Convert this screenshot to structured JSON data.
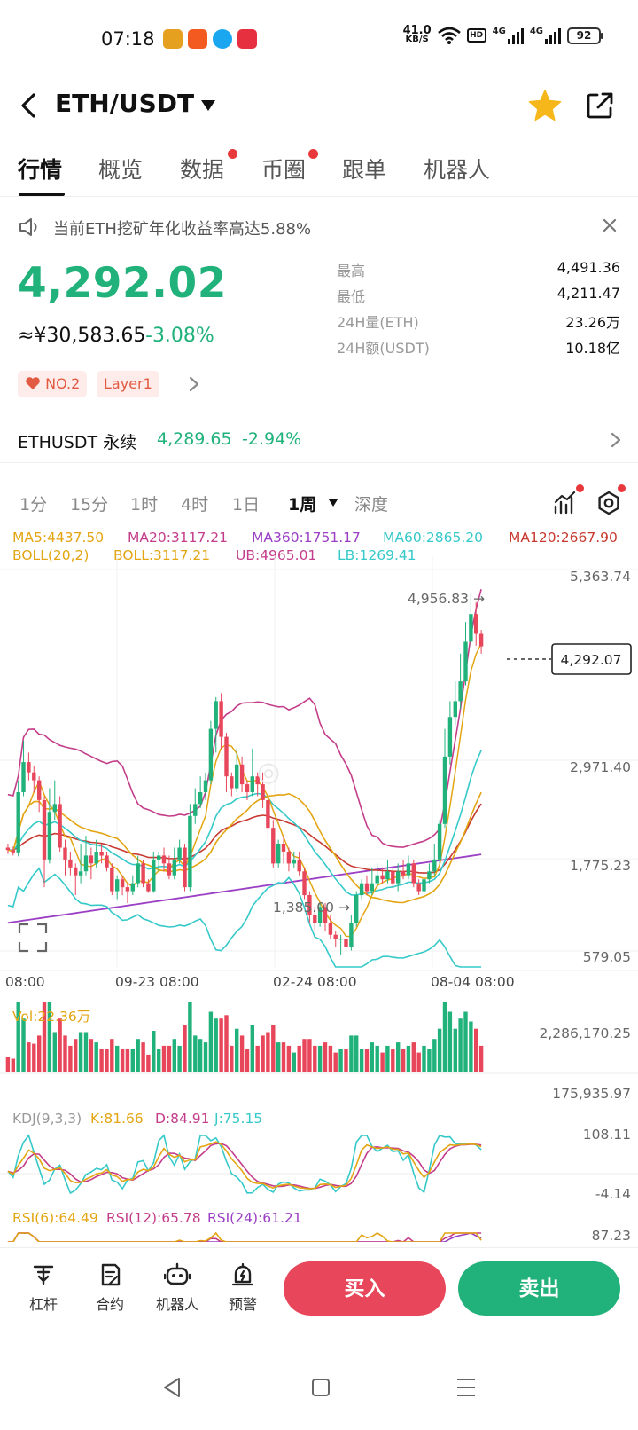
{
  "status_bar": {
    "time": "07:18",
    "net_speed_value": "41.0",
    "net_speed_unit": "KB/S",
    "hd_label": "HD",
    "net_4g_a": "4G",
    "net_4g_b": "4G",
    "battery": "92"
  },
  "header": {
    "title": "ETH/USDT"
  },
  "tabs": [
    {
      "label": "行情",
      "active": true,
      "dot": false
    },
    {
      "label": "概览",
      "active": false,
      "dot": false
    },
    {
      "label": "数据",
      "active": false,
      "dot": true
    },
    {
      "label": "币圈",
      "active": false,
      "dot": true
    },
    {
      "label": "跟单",
      "active": false,
      "dot": false
    },
    {
      "label": "机器人",
      "active": false,
      "dot": false
    }
  ],
  "notice": {
    "text": "当前ETH挖矿年化收益率高达5.88%"
  },
  "price": {
    "last": "4,292.02",
    "cny": "≈¥30,583.65",
    "change_pct": "-3.08%"
  },
  "tags": {
    "rank": "NO.2",
    "category": "Layer1"
  },
  "stats": [
    {
      "label": "最高",
      "value": "4,491.36"
    },
    {
      "label": "最低",
      "value": "4,211.47"
    },
    {
      "label": "24H量(ETH)",
      "value": "23.26万"
    },
    {
      "label": "24H额(USDT)",
      "value": "10.18亿"
    }
  ],
  "perpetual": {
    "name": "ETHUSDT 永续",
    "price": "4,289.65",
    "change_pct": "-2.94%"
  },
  "intervals": [
    {
      "label": "1分",
      "active": false
    },
    {
      "label": "15分",
      "active": false
    },
    {
      "label": "1时",
      "active": false
    },
    {
      "label": "4时",
      "active": false
    },
    {
      "label": "1日",
      "active": false
    },
    {
      "label": "1周",
      "active": true
    },
    {
      "label": "深度",
      "active": false
    }
  ],
  "indicators": {
    "ma5": "MA5:4437.50",
    "ma20": "MA20:3117.21",
    "ma360": "MA360:1751.17",
    "ma60": "MA60:2865.20",
    "ma120": "MA120:2667.90",
    "boll": "BOLL(20,2)",
    "boll_mid": "BOLL:3117.21",
    "boll_ub": "UB:4965.01",
    "boll_lb": "LB:1269.41",
    "vol": "Vol:22.36万",
    "kdj": "KDJ(9,3,3)",
    "kdj_k": "K:81.66",
    "kdj_d": "D:84.91",
    "kdj_j": "J:75.15",
    "rsi6": "RSI(6):64.49",
    "rsi12": "RSI(12):65.78",
    "rsi24": "RSI(24):61.21"
  },
  "colors": {
    "up": "#21b27b",
    "down": "#e8465a",
    "ma5": "#e3a512",
    "ma20": "#c43d8a",
    "ma360": "#9b3fc4",
    "ma60": "#35c9c9",
    "ma120": "#c8392f",
    "boll": "#c43d8a"
  },
  "chart_data": {
    "type": "candlestick",
    "interval": "1周",
    "price_axis_ticks": [
      "5,363.74",
      "2,971.40",
      "1,775.23",
      "579.05"
    ],
    "price_axis_range": [
      579.05,
      5363.74
    ],
    "x_ticks": [
      "08:00",
      "09-23 08:00",
      "02-24 08:00",
      "08-04 08:00"
    ],
    "last_price_label": "4,292.07",
    "high_annotation": "4,956.83 →",
    "low_annotation": "1,385.00 →",
    "volume_axis_ticks": [
      "2,286,170.25",
      "175,935.97"
    ],
    "kdj_axis_ticks": [
      "108.11",
      "-4.14"
    ],
    "rsi_axis_ticks": [
      "87.23"
    ],
    "candles": [
      [
        1750,
        1720,
        1800,
        1670
      ],
      [
        1720,
        1690,
        1760,
        1650
      ],
      [
        1690,
        2450,
        2600,
        1640
      ],
      [
        2450,
        2830,
        3100,
        2400
      ],
      [
        2830,
        2700,
        2950,
        2600
      ],
      [
        2700,
        2600,
        2780,
        2450
      ],
      [
        2600,
        2350,
        2650,
        2200
      ],
      [
        2350,
        1600,
        2400,
        1250
      ],
      [
        1600,
        2200,
        2500,
        1550
      ],
      [
        2200,
        2300,
        2600,
        2100
      ],
      [
        2300,
        1750,
        2400,
        1700
      ],
      [
        1750,
        1600,
        1850,
        1400
      ],
      [
        1600,
        1500,
        1700,
        1400
      ],
      [
        1500,
        1400,
        1550,
        1150
      ],
      [
        1400,
        1450,
        1800,
        1300
      ],
      [
        1450,
        1650,
        1900,
        1400
      ],
      [
        1650,
        1550,
        1750,
        1350
      ],
      [
        1550,
        1700,
        1850,
        1500
      ],
      [
        1700,
        1650,
        1800,
        1550
      ],
      [
        1650,
        1500,
        1700,
        1450
      ],
      [
        1500,
        1200,
        1550,
        1150
      ],
      [
        1200,
        1350,
        1400,
        1100
      ],
      [
        1350,
        1250,
        1400,
        1150
      ],
      [
        1250,
        1200,
        1300,
        1050
      ],
      [
        1200,
        1300,
        1400,
        1150
      ],
      [
        1300,
        1550,
        1650,
        1250
      ],
      [
        1550,
        1300,
        1600,
        1250
      ],
      [
        1300,
        1200,
        1350,
        1180
      ],
      [
        1200,
        1600,
        1700,
        1180
      ],
      [
        1600,
        1650,
        1700,
        1450
      ],
      [
        1650,
        1550,
        1750,
        1450
      ],
      [
        1550,
        1400,
        1650,
        1350
      ],
      [
        1400,
        1600,
        1750,
        1350
      ],
      [
        1600,
        1750,
        1850,
        1550
      ],
      [
        1750,
        1250,
        1800,
        1200
      ],
      [
        1250,
        2150,
        2300,
        1200
      ],
      [
        2150,
        2300,
        2500,
        2050
      ],
      [
        2300,
        2450,
        2650,
        2250
      ],
      [
        2450,
        2600,
        2700,
        2350
      ],
      [
        2600,
        3250,
        3350,
        2550
      ],
      [
        3250,
        3600,
        3650,
        2950
      ],
      [
        3600,
        3150,
        3700,
        3000
      ],
      [
        3150,
        2650,
        3200,
        2450
      ],
      [
        2650,
        2500,
        2700,
        2400
      ],
      [
        2500,
        2800,
        3000,
        2450
      ],
      [
        2800,
        2550,
        2900,
        2450
      ],
      [
        2550,
        2450,
        2600,
        2350
      ],
      [
        2450,
        2650,
        3000,
        2400
      ],
      [
        2650,
        2550,
        2700,
        2400
      ],
      [
        2550,
        2350,
        2700,
        2250
      ],
      [
        2350,
        2000,
        2400,
        1900
      ],
      [
        2000,
        1550,
        2100,
        1500
      ],
      [
        1550,
        1800,
        1850,
        1500
      ],
      [
        1800,
        1700,
        1900,
        1550
      ],
      [
        1700,
        1550,
        1750,
        1450
      ],
      [
        1550,
        1600,
        1700,
        1500
      ],
      [
        1600,
        1450,
        1700,
        1400
      ],
      [
        1450,
        1150,
        1500,
        1100
      ],
      [
        1150,
        900,
        1200,
        800
      ],
      [
        900,
        800,
        1000,
        700
      ],
      [
        800,
        1000,
        1050,
        750
      ],
      [
        1000,
        800,
        1050,
        700
      ],
      [
        800,
        650,
        900,
        600
      ],
      [
        650,
        600,
        700,
        500
      ],
      [
        600,
        600,
        650,
        400
      ],
      [
        600,
        500,
        650,
        400
      ],
      [
        500,
        800,
        900,
        450
      ],
      [
        800,
        1150,
        1200,
        750
      ],
      [
        1150,
        1300,
        1350,
        1100
      ],
      [
        1300,
        1200,
        1400,
        1150
      ],
      [
        1200,
        1300,
        1500,
        1150
      ],
      [
        1300,
        1400,
        1550,
        1250
      ],
      [
        1400,
        1350,
        1500,
        1300
      ],
      [
        1350,
        1450,
        1600,
        1300
      ],
      [
        1450,
        1300,
        1500,
        1250
      ],
      [
        1300,
        1450,
        1550,
        1200
      ],
      [
        1450,
        1400,
        1600,
        1350
      ],
      [
        1400,
        1550,
        1650,
        1350
      ],
      [
        1550,
        1300,
        1600,
        1250
      ],
      [
        1300,
        1200,
        1350,
        1150
      ],
      [
        1200,
        1350,
        1450,
        1150
      ],
      [
        1350,
        1450,
        1550,
        1300
      ],
      [
        1450,
        1600,
        1800,
        1400
      ],
      [
        1600,
        2050,
        2100,
        1550
      ],
      [
        2050,
        2900,
        3250,
        2000
      ],
      [
        2900,
        3400,
        3600,
        2800
      ],
      [
        3400,
        3600,
        3850,
        3300
      ],
      [
        3600,
        3850,
        4200,
        3500
      ],
      [
        3850,
        4350,
        4600,
        3800
      ],
      [
        4350,
        4700,
        4956.83,
        4300
      ],
      [
        4700,
        4450,
        4850,
        4300
      ],
      [
        4450,
        4292.07,
        4500,
        4200
      ]
    ]
  }
}
